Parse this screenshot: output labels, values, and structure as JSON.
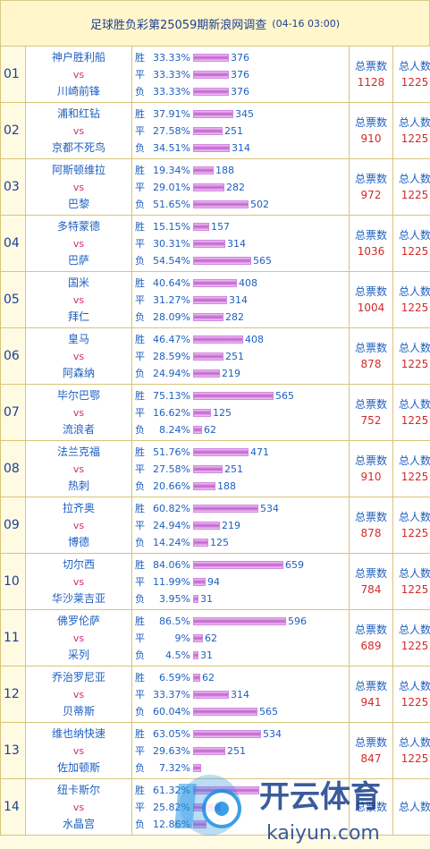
{
  "title": {
    "text": "足球胜负彩第25059期新浪网调查",
    "time": "(04-16 03:00)"
  },
  "labels": {
    "win": "胜",
    "draw": "平",
    "loss": "负",
    "vs": "vs",
    "total_votes": "总票数",
    "total_people": "总人数"
  },
  "matches": [
    {
      "no": "01",
      "home": "神户胜利船",
      "away": "川崎前锋",
      "win": {
        "pct": "33.33%",
        "count": "376"
      },
      "draw": {
        "pct": "33.33%",
        "count": "376"
      },
      "loss": {
        "pct": "33.33%",
        "count": "376"
      },
      "total_votes": "1128",
      "total_people": "1225"
    },
    {
      "no": "02",
      "home": "浦和红钻",
      "away": "京都不死鸟",
      "win": {
        "pct": "37.91%",
        "count": "345"
      },
      "draw": {
        "pct": "27.58%",
        "count": "251"
      },
      "loss": {
        "pct": "34.51%",
        "count": "314"
      },
      "total_votes": "910",
      "total_people": "1225"
    },
    {
      "no": "03",
      "home": "阿斯顿维拉",
      "away": "巴黎",
      "win": {
        "pct": "19.34%",
        "count": "188"
      },
      "draw": {
        "pct": "29.01%",
        "count": "282"
      },
      "loss": {
        "pct": "51.65%",
        "count": "502"
      },
      "total_votes": "972",
      "total_people": "1225"
    },
    {
      "no": "04",
      "home": "多特蒙德",
      "away": "巴萨",
      "win": {
        "pct": "15.15%",
        "count": "157"
      },
      "draw": {
        "pct": "30.31%",
        "count": "314"
      },
      "loss": {
        "pct": "54.54%",
        "count": "565"
      },
      "total_votes": "1036",
      "total_people": "1225"
    },
    {
      "no": "05",
      "home": "国米",
      "away": "拜仁",
      "win": {
        "pct": "40.64%",
        "count": "408"
      },
      "draw": {
        "pct": "31.27%",
        "count": "314"
      },
      "loss": {
        "pct": "28.09%",
        "count": "282"
      },
      "total_votes": "1004",
      "total_people": "1225"
    },
    {
      "no": "06",
      "home": "皇马",
      "away": "阿森纳",
      "win": {
        "pct": "46.47%",
        "count": "408"
      },
      "draw": {
        "pct": "28.59%",
        "count": "251"
      },
      "loss": {
        "pct": "24.94%",
        "count": "219"
      },
      "total_votes": "878",
      "total_people": "1225"
    },
    {
      "no": "07",
      "home": "毕尔巴鄂",
      "away": "流浪者",
      "win": {
        "pct": "75.13%",
        "count": "565"
      },
      "draw": {
        "pct": "16.62%",
        "count": "125"
      },
      "loss": {
        "pct": "8.24%",
        "count": "62"
      },
      "total_votes": "752",
      "total_people": "1225"
    },
    {
      "no": "08",
      "home": "法兰克福",
      "away": "热刺",
      "win": {
        "pct": "51.76%",
        "count": "471"
      },
      "draw": {
        "pct": "27.58%",
        "count": "251"
      },
      "loss": {
        "pct": "20.66%",
        "count": "188"
      },
      "total_votes": "910",
      "total_people": "1225"
    },
    {
      "no": "09",
      "home": "拉齐奥",
      "away": "博德",
      "win": {
        "pct": "60.82%",
        "count": "534"
      },
      "draw": {
        "pct": "24.94%",
        "count": "219"
      },
      "loss": {
        "pct": "14.24%",
        "count": "125"
      },
      "total_votes": "878",
      "total_people": "1225"
    },
    {
      "no": "10",
      "home": "切尔西",
      "away": "华沙莱吉亚",
      "win": {
        "pct": "84.06%",
        "count": "659"
      },
      "draw": {
        "pct": "11.99%",
        "count": "94"
      },
      "loss": {
        "pct": "3.95%",
        "count": "31"
      },
      "total_votes": "784",
      "total_people": "1225"
    },
    {
      "no": "11",
      "home": "佛罗伦萨",
      "away": "采列",
      "win": {
        "pct": "86.5%",
        "count": "596"
      },
      "draw": {
        "pct": "9%",
        "count": "62"
      },
      "loss": {
        "pct": "4.5%",
        "count": "31"
      },
      "total_votes": "689",
      "total_people": "1225"
    },
    {
      "no": "12",
      "home": "乔治罗尼亚",
      "away": "贝蒂斯",
      "win": {
        "pct": "6.59%",
        "count": "62"
      },
      "draw": {
        "pct": "33.37%",
        "count": "314"
      },
      "loss": {
        "pct": "60.04%",
        "count": "565"
      },
      "total_votes": "941",
      "total_people": "1225"
    },
    {
      "no": "13",
      "home": "维也纳快速",
      "away": "佐加顿斯",
      "win": {
        "pct": "63.05%",
        "count": "534"
      },
      "draw": {
        "pct": "29.63%",
        "count": "251"
      },
      "loss": {
        "pct": "7.32%",
        "count": ""
      },
      "total_votes": "847",
      "total_people": "1225"
    },
    {
      "no": "14",
      "home": "纽卡斯尔",
      "away": "水晶宫",
      "win": {
        "pct": "61.32%",
        "count": ""
      },
      "draw": {
        "pct": "25.82%",
        "count": ""
      },
      "loss": {
        "pct": "12.86%",
        "count": ""
      },
      "total_votes": "",
      "total_people": ""
    }
  ],
  "watermark": {
    "brand_cn": "开云体育",
    "brand_en": "kaiyun.com"
  },
  "colors": {
    "bar": "#c060d0",
    "link": "#1e5fbf",
    "number": "#d22a2a",
    "vs": "#d2287a"
  }
}
